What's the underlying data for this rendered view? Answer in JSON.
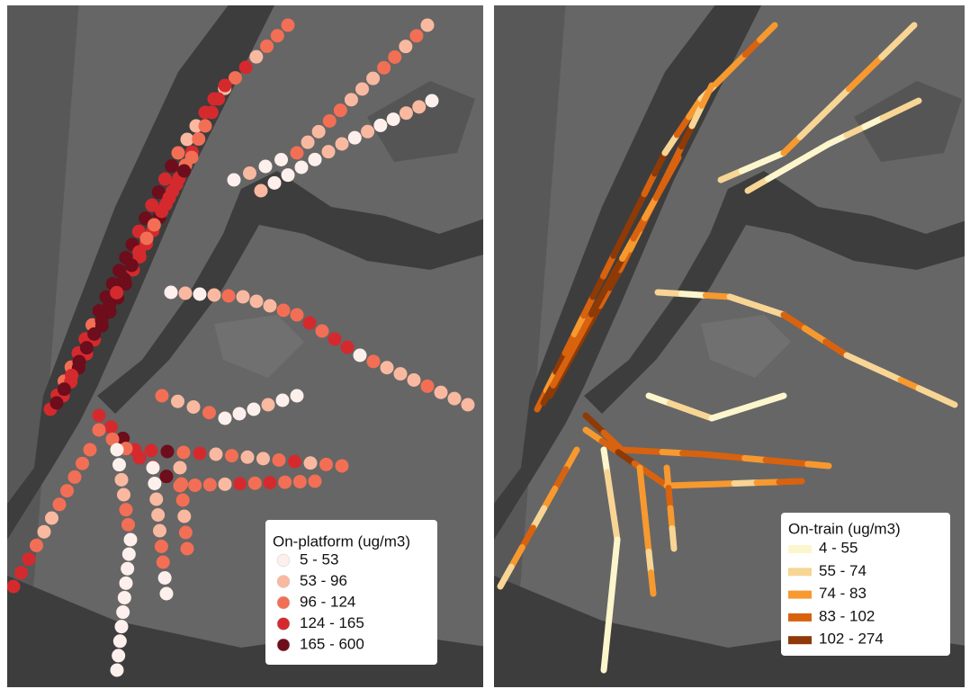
{
  "maps": [
    {
      "legend_title": "On-platform (ug/m3)",
      "classes": [
        {
          "label": "5 - 53",
          "color": "#fdf0ec"
        },
        {
          "label": "53 - 96",
          "color": "#f9b9a0"
        },
        {
          "label": "96 - 124",
          "color": "#f26f55"
        },
        {
          "label": "124 - 165",
          "color": "#d42a2e"
        },
        {
          "label": "165 - 600",
          "color": "#6e0d1b"
        }
      ]
    },
    {
      "legend_title": "On-train (ug/m3)",
      "classes": [
        {
          "label": "4 - 55",
          "color": "#fdf6cc"
        },
        {
          "label": "55 - 74",
          "color": "#f8d595"
        },
        {
          "label": "74 - 83",
          "color": "#f7992f"
        },
        {
          "label": "83 - 102",
          "color": "#d9620f"
        },
        {
          "label": "102 - 274",
          "color": "#8e3a07"
        }
      ]
    }
  ]
}
